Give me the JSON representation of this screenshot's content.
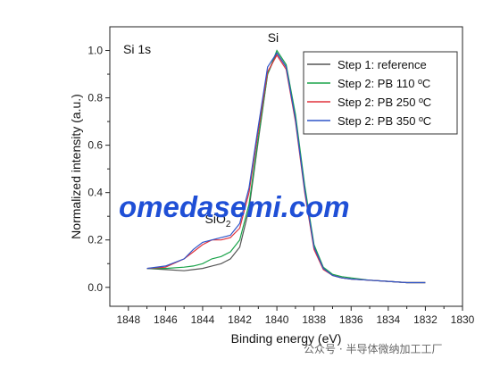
{
  "chart_data": {
    "type": "line",
    "xlabel": "Binding energy (eV)",
    "ylabel": "Normalized intensity (a.u.)",
    "xlim": [
      1849,
      1830
    ],
    "ylim": [
      -0.08,
      1.1
    ],
    "x_reversed": true,
    "x_ticks": [
      1848,
      1846,
      1844,
      1842,
      1840,
      1838,
      1836,
      1834,
      1832,
      1830
    ],
    "x_tick_labels": [
      "1848",
      "1846",
      "1844",
      "1842",
      "1840",
      "1838",
      "1836",
      "1834",
      "1832",
      "1830"
    ],
    "y_ticks": [
      0.0,
      0.2,
      0.4,
      0.6,
      0.8,
      1.0
    ],
    "y_tick_labels": [
      "0.0",
      "0.2",
      "0.4",
      "0.6",
      "0.8",
      "1.0"
    ],
    "grid": false,
    "legend_placement": "top-right",
    "annotations": [
      {
        "text": "Si 1s",
        "kind": "panel-label"
      },
      {
        "text": "Si",
        "x": 1840.2,
        "y": 1.02
      },
      {
        "text": "SiO",
        "subscript": "2",
        "x": 1843.3,
        "y": 0.27
      }
    ],
    "series": [
      {
        "name": "Step 1: reference",
        "color": "#555555",
        "x": [
          1847,
          1846,
          1845,
          1844.5,
          1844,
          1843.5,
          1843,
          1842.5,
          1842,
          1841.5,
          1841,
          1840.5,
          1840,
          1839.5,
          1839,
          1838.5,
          1838,
          1837.5,
          1837,
          1836.5,
          1836,
          1835,
          1834,
          1833,
          1832
        ],
        "y": [
          0.08,
          0.075,
          0.07,
          0.075,
          0.08,
          0.09,
          0.1,
          0.12,
          0.17,
          0.33,
          0.62,
          0.9,
          0.99,
          0.93,
          0.72,
          0.42,
          0.17,
          0.08,
          0.05,
          0.04,
          0.035,
          0.03,
          0.025,
          0.02,
          0.02
        ]
      },
      {
        "name": "Step 2: PB 110 ºC",
        "color": "#1aa34a",
        "x": [
          1847,
          1846,
          1845,
          1844.5,
          1844,
          1843.5,
          1843,
          1842.5,
          1842,
          1841.5,
          1841,
          1840.5,
          1840,
          1839.5,
          1839,
          1838.5,
          1838,
          1837.5,
          1837,
          1836.5,
          1836,
          1835,
          1834,
          1833,
          1832
        ],
        "y": [
          0.08,
          0.08,
          0.085,
          0.09,
          0.1,
          0.12,
          0.13,
          0.15,
          0.2,
          0.35,
          0.63,
          0.9,
          1.0,
          0.94,
          0.73,
          0.43,
          0.18,
          0.085,
          0.055,
          0.045,
          0.04,
          0.03,
          0.025,
          0.02,
          0.02
        ]
      },
      {
        "name": "Step 2: PB 250 ºC",
        "color": "#e0323c",
        "x": [
          1847,
          1846,
          1845,
          1844.5,
          1844,
          1843.5,
          1843,
          1842.5,
          1842,
          1841.5,
          1841,
          1840.5,
          1840,
          1839.5,
          1839,
          1838.5,
          1838,
          1837.5,
          1837,
          1836.5,
          1836,
          1835,
          1834,
          1833,
          1832
        ],
        "y": [
          0.08,
          0.085,
          0.12,
          0.15,
          0.18,
          0.2,
          0.2,
          0.21,
          0.25,
          0.4,
          0.66,
          0.91,
          0.98,
          0.92,
          0.7,
          0.4,
          0.16,
          0.075,
          0.05,
          0.04,
          0.035,
          0.03,
          0.025,
          0.02,
          0.02
        ]
      },
      {
        "name": "Step 2: PB 350 ºC",
        "color": "#2f55c8",
        "x": [
          1847,
          1846,
          1845,
          1844.5,
          1844,
          1843.5,
          1843,
          1842.5,
          1842,
          1841.5,
          1841,
          1840.5,
          1840,
          1839.5,
          1839,
          1838.5,
          1838,
          1837.5,
          1837,
          1836.5,
          1836,
          1835,
          1834,
          1833,
          1832
        ],
        "y": [
          0.08,
          0.09,
          0.12,
          0.16,
          0.19,
          0.2,
          0.21,
          0.22,
          0.27,
          0.42,
          0.68,
          0.93,
          0.99,
          0.93,
          0.71,
          0.41,
          0.17,
          0.08,
          0.05,
          0.04,
          0.035,
          0.03,
          0.025,
          0.02,
          0.02
        ]
      }
    ]
  },
  "watermark": {
    "big_text": "omedasemi.com",
    "bottom_text": "公众号 · 半导体微纳加工工厂"
  }
}
